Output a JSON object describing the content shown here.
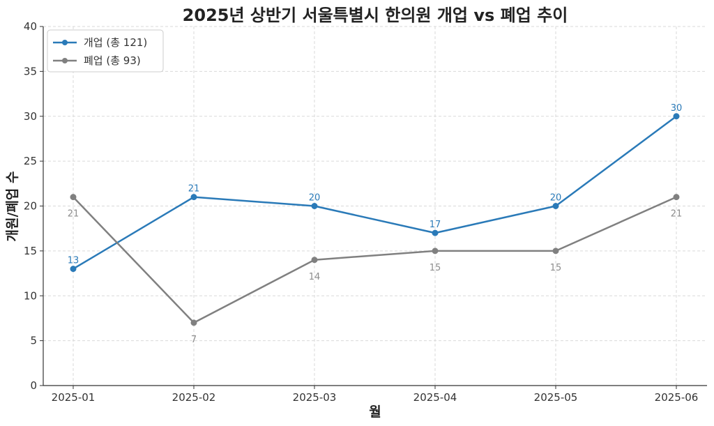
{
  "chart_data": {
    "type": "line",
    "title": "2025년 상반기 서울특별시 한의원 개업 vs 폐업 추이",
    "xlabel": "월",
    "ylabel": "개원/폐업 수",
    "categories": [
      "2025-01",
      "2025-02",
      "2025-03",
      "2025-04",
      "2025-05",
      "2025-06"
    ],
    "ylim": [
      0,
      40
    ],
    "yticks": [
      0,
      5,
      10,
      15,
      20,
      25,
      30,
      35,
      40
    ],
    "grid": true,
    "legend_position": "top-left",
    "series": [
      {
        "name": "개업 (총 121)",
        "values": [
          13,
          21,
          20,
          17,
          20,
          30
        ],
        "color": "#2a7ab8",
        "label_position": "above"
      },
      {
        "name": "폐업 (총 93)",
        "values": [
          21,
          7,
          14,
          15,
          15,
          21
        ],
        "color": "#808080",
        "label_position": "below"
      }
    ]
  }
}
